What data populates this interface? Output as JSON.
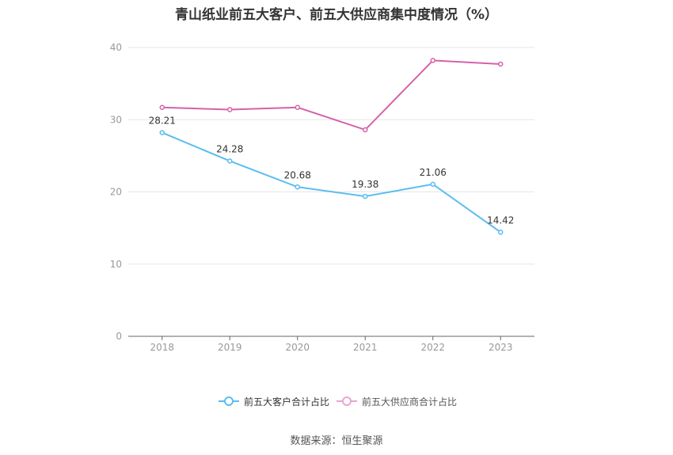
{
  "chart_data": {
    "type": "line",
    "title": "青山纸业前五大客户、前五大供应商集中度情况（%）",
    "categories": [
      "2018",
      "2019",
      "2020",
      "2021",
      "2022",
      "2023"
    ],
    "ylim": [
      0,
      40
    ],
    "yticks": [
      0,
      10,
      20,
      30,
      40
    ],
    "grid": true,
    "legend_position": "bottom",
    "series": [
      {
        "name": "前五大客户合计占比",
        "color": "#5bbdf0",
        "values": [
          28.21,
          24.28,
          20.68,
          19.38,
          21.06,
          14.42
        ],
        "labels": [
          "28.21",
          "24.28",
          "20.68",
          "19.38",
          "21.06",
          "14.42"
        ]
      },
      {
        "name": "前五大供应商合计占比",
        "color": "#d462a8",
        "values": [
          31.7,
          31.4,
          31.7,
          28.6,
          38.2,
          37.7
        ],
        "labels": []
      }
    ]
  },
  "source": "数据来源：恒生聚源"
}
